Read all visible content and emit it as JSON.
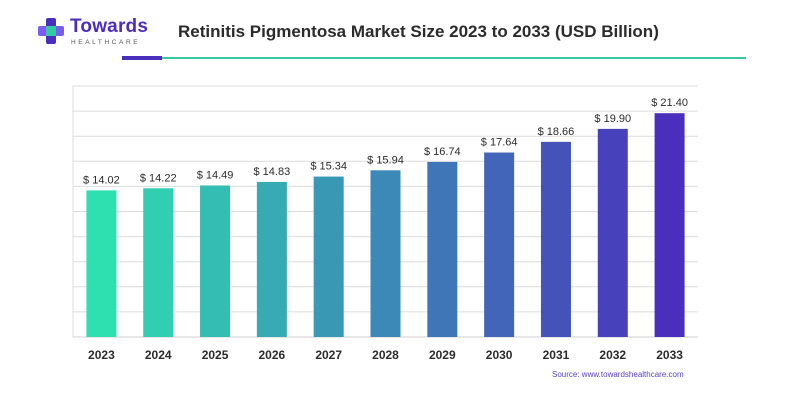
{
  "header": {
    "logo_name": "Towards",
    "logo_sub": "HEALTHCARE",
    "title": "Retinitis Pigmentosa Market Size 2023 to 2033 (USD Billion)"
  },
  "footer": {
    "source": "Source: www.towardshealthcare.com"
  },
  "colors": {
    "brand": "#4a2fbd",
    "accent_line": "#35c9a8",
    "bar_start": "#2ee0b0",
    "bar_end": "#4a2fbd"
  },
  "chart_data": {
    "type": "bar",
    "title": "Retinitis Pigmentosa Market Size 2023 to 2033 (USD Billion)",
    "categories": [
      "2023",
      "2024",
      "2025",
      "2026",
      "2027",
      "2028",
      "2029",
      "2030",
      "2031",
      "2032",
      "2033"
    ],
    "values": [
      14.02,
      14.22,
      14.49,
      14.83,
      15.34,
      15.94,
      16.74,
      17.64,
      18.66,
      19.9,
      21.4
    ],
    "value_labels": [
      "$ 14.02",
      "$ 14.22",
      "$ 14.49",
      "$ 14.83",
      "$ 15.34",
      "$ 15.94",
      "$ 16.74",
      "$ 17.64",
      "$ 18.66",
      "$ 19.90",
      "$ 21.40"
    ],
    "xlabel": "",
    "ylabel": "",
    "ylim": [
      0,
      24
    ],
    "grid": true
  }
}
